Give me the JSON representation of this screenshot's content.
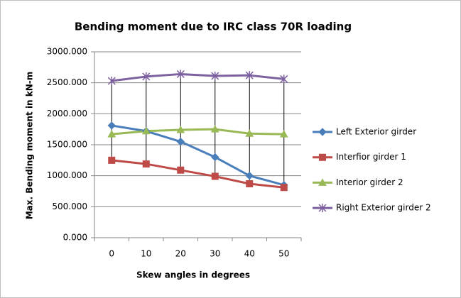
{
  "chart_data": {
    "type": "line",
    "title": "Bending moment due to IRC class 70R loading",
    "x_label": "Skew angles in degrees",
    "y_label": "Max. Bending moment in kN-m",
    "categories": [
      "0",
      "10",
      "20",
      "30",
      "40",
      "50"
    ],
    "series": [
      {
        "name": "Left Exterior girder",
        "color": "#4a7ebb",
        "marker": "diamond",
        "values": [
          1810,
          1720,
          1550,
          1300,
          1000,
          850
        ]
      },
      {
        "name": "Interfior girder 1",
        "color": "#be4b48",
        "marker": "square",
        "values": [
          1250,
          1190,
          1090,
          990,
          870,
          810
        ]
      },
      {
        "name": "Interior girder 2",
        "color": "#98b954",
        "marker": "triangle",
        "values": [
          1670,
          1720,
          1740,
          1750,
          1680,
          1670
        ]
      },
      {
        "name": "Right Exterior girder 2",
        "color": "#7d60a0",
        "marker": "x",
        "values": [
          2530,
          2600,
          2640,
          2610,
          2620,
          2560
        ]
      }
    ],
    "ylim": [
      0,
      3000
    ],
    "yticks": [
      {
        "value": 0,
        "label": "0.000"
      },
      {
        "value": 500,
        "label": "500.000"
      },
      {
        "value": 1000,
        "label": "1000.000"
      },
      {
        "value": 1500,
        "label": "1500.000"
      },
      {
        "value": 2000,
        "label": "2000.000"
      },
      {
        "value": 2500,
        "label": "2500.000"
      },
      {
        "value": 3000,
        "label": "3000.000"
      }
    ],
    "grid": true,
    "drop_lines": true,
    "legend": "right"
  }
}
